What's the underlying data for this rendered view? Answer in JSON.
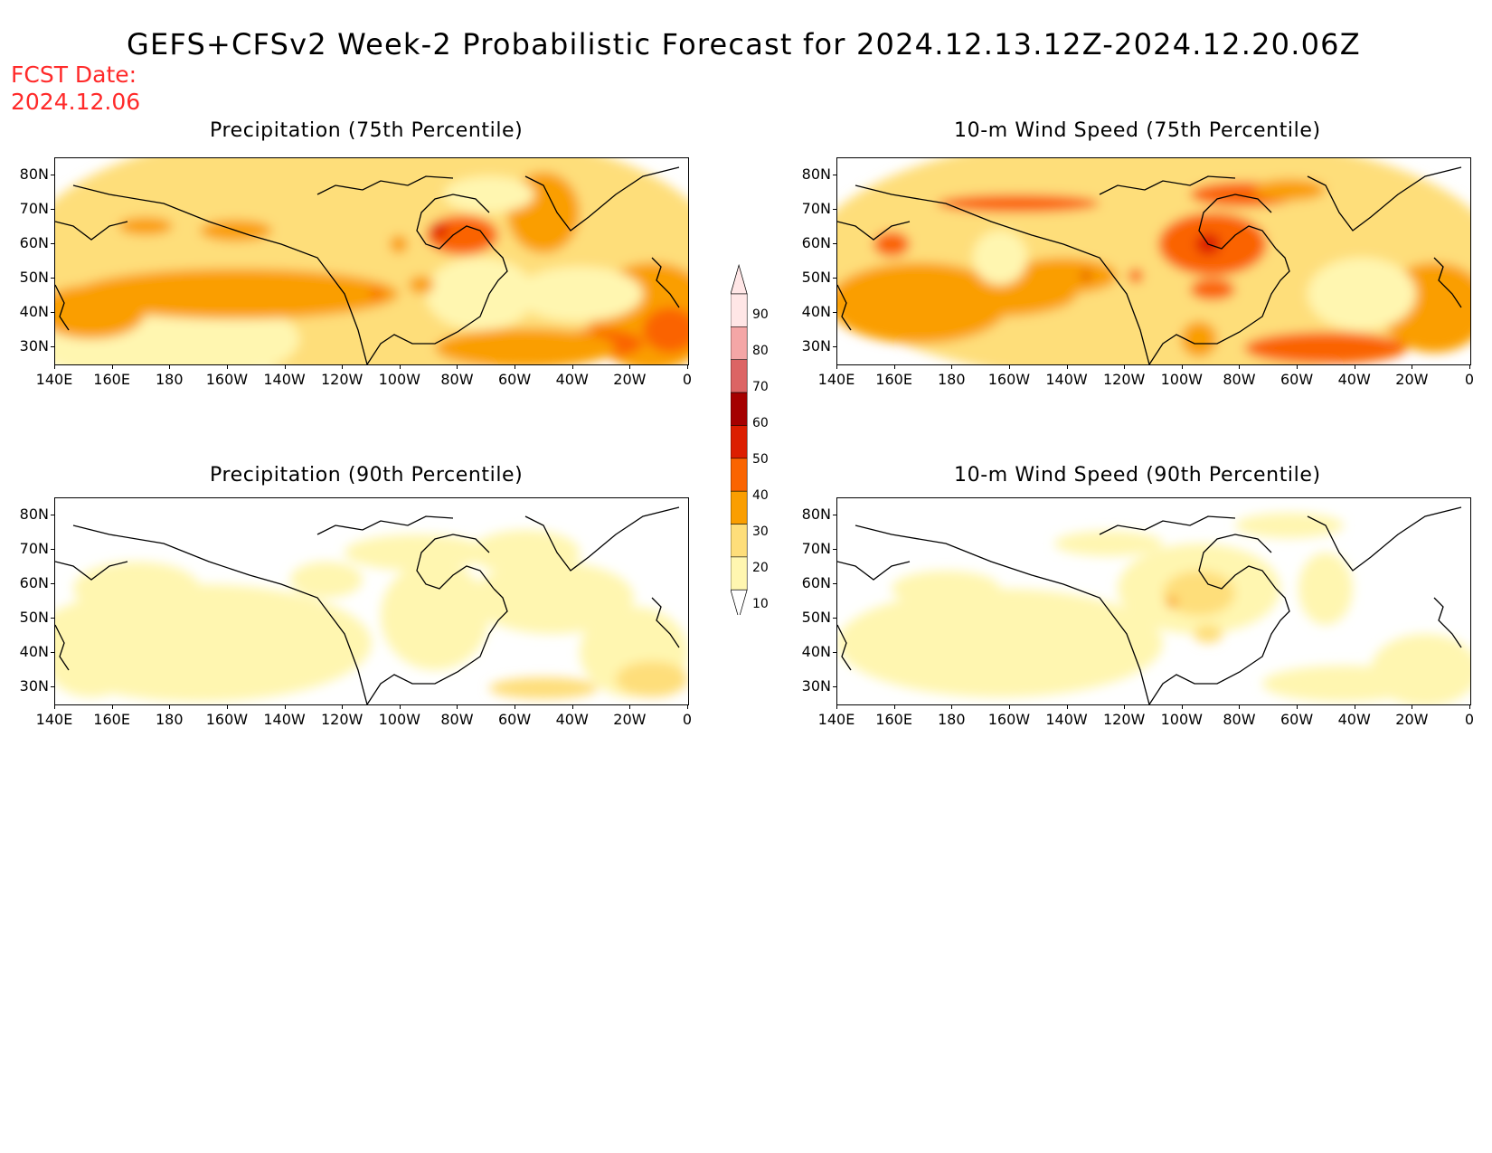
{
  "title": "GEFS+CFSv2 Week-2 Probabilistic Forecast for 2024.12.13.12Z-2024.12.20.06Z",
  "fcst_date": {
    "line1": "FCST Date:",
    "line2": "2024.12.06"
  },
  "panels": [
    {
      "title": "Precipitation (75th Percentile)"
    },
    {
      "title": "10-m Wind Speed (75th Percentile)"
    },
    {
      "title": "Precipitation (90th Percentile)"
    },
    {
      "title": "10-m Wind Speed (90th Percentile)"
    }
  ],
  "axes": {
    "lat_labels": [
      "80N",
      "70N",
      "60N",
      "50N",
      "40N",
      "30N"
    ],
    "lon_labels": [
      "140E",
      "160E",
      "180",
      "160W",
      "140W",
      "120W",
      "100W",
      "80W",
      "60W",
      "40W",
      "20W",
      "0"
    ]
  },
  "colorbar": {
    "labels": [
      "90",
      "80",
      "70",
      "60",
      "50",
      "40",
      "30",
      "20",
      "10"
    ],
    "colors": [
      "#ffe6e6",
      "#f4a6a6",
      "#dc6464",
      "#a50000",
      "#dc1e00",
      "#fa6400",
      "#fa9e00",
      "#fede7a",
      "#fff6b0"
    ]
  },
  "shading": {
    "light": "#fff6b0",
    "yellow": "#fede7a",
    "orange": "#fa9e00",
    "dark_orange": "#fa6400",
    "red": "#dc1e00",
    "dark_red": "#a50000"
  }
}
